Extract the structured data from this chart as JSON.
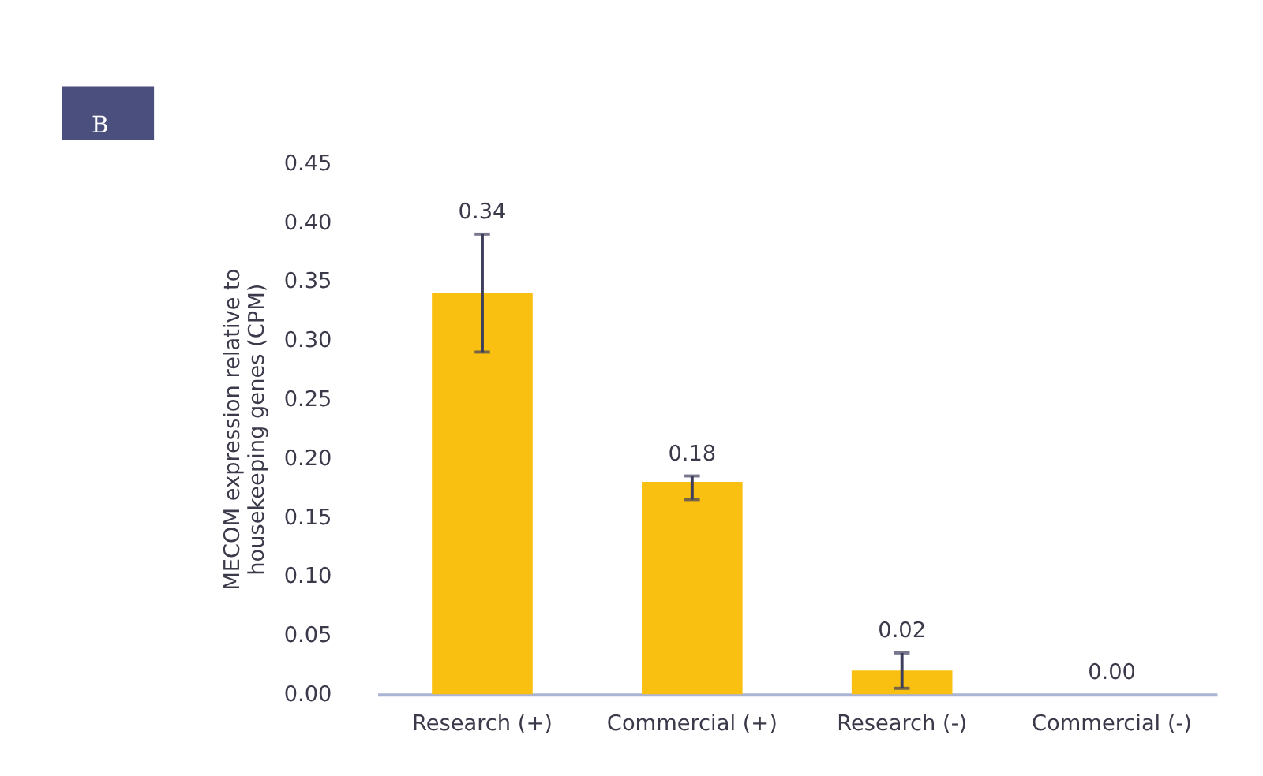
{
  "chart_data": {
    "type": "bar",
    "ylabel": "MECOM expression relative to\nhousekeeping genes (CPM)",
    "annotations": [
      "B"
    ],
    "categories": [
      "Research (+)",
      "Commercial (+)",
      "Research (-)",
      "Commercial (-)"
    ],
    "values": [
      0.34,
      0.18,
      0.02,
      0.0
    ],
    "errors": [
      [
        0.29,
        0.39
      ],
      [
        0.165,
        0.185
      ],
      [
        0.005,
        0.035
      ],
      null
    ],
    "color": "#f9c012",
    "value_labels": [
      "0.34",
      "0.18",
      "0.02",
      "0.00"
    ],
    "ylim": [
      0,
      0.45
    ],
    "yticks": [
      {
        "value": 0,
        "label": "0.00"
      },
      0.05,
      {
        "value": 0.1,
        "label": "0.10"
      },
      0.15,
      {
        "value": 0.2,
        "label": "0.20"
      },
      0.25,
      {
        "value": 0.3,
        "label": "0.30"
      },
      0.35,
      {
        "value": 0.4,
        "label": "0.40"
      },
      0.45
    ],
    "grid": false
  }
}
